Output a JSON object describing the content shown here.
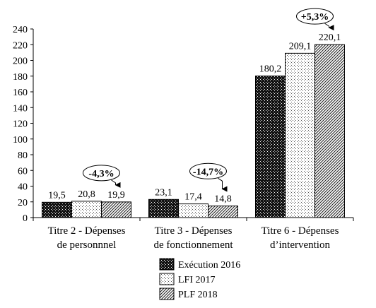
{
  "chart_data": {
    "type": "bar",
    "categories": [
      [
        "Titre 2 - Dépenses",
        "de personnnel"
      ],
      [
        "Titre 3 - Dépenses",
        "de fonctionnement"
      ],
      [
        "Titre 6 - Dépenses",
        "d’intervention"
      ]
    ],
    "series": [
      {
        "name": "Exécution 2016",
        "values": [
          19.5,
          23.1,
          180.2
        ],
        "labels": [
          "19,5",
          "23,1",
          "180,2"
        ],
        "pattern": "dark-dots"
      },
      {
        "name": "LFI 2017",
        "values": [
          20.8,
          17.4,
          209.1
        ],
        "labels": [
          "20,8",
          "17,4",
          "209,1"
        ],
        "pattern": "light-dots"
      },
      {
        "name": "PLF 2018",
        "values": [
          19.9,
          14.8,
          220.1
        ],
        "labels": [
          "19,9",
          "14,8",
          "220,1"
        ],
        "pattern": "diagonal-hatch"
      }
    ],
    "annotations": [
      "-4,3%",
      "-14,7%",
      "+5,3%"
    ],
    "ylim": [
      0,
      240
    ],
    "yticks": [
      0,
      20,
      40,
      60,
      80,
      100,
      120,
      140,
      160,
      180,
      200,
      220,
      240
    ],
    "legend_position": "bottom-right",
    "grid": false
  }
}
